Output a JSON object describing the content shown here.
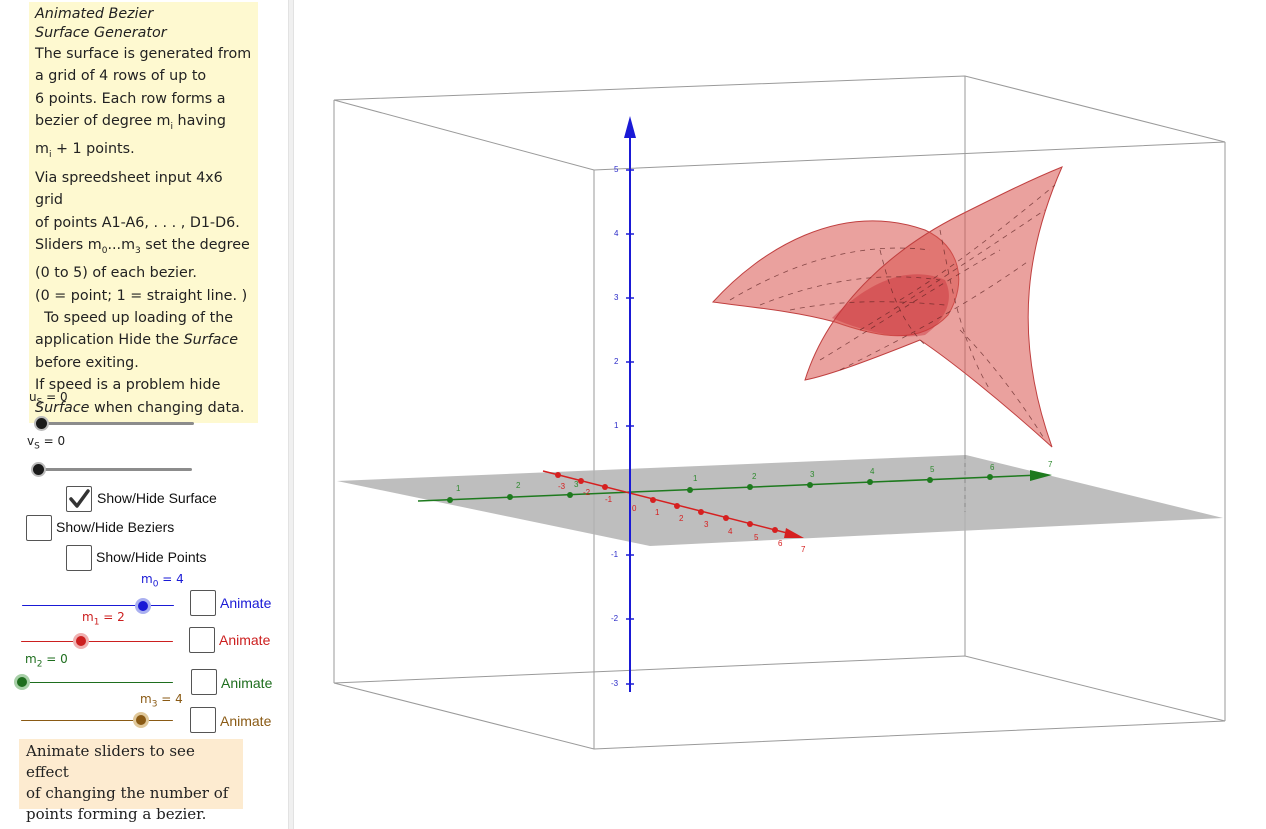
{
  "info": {
    "title_line1": "Animated Bezier",
    "title_line2": "Surface Generator",
    "lines": [
      "The surface is generated from",
      "a grid of 4 rows of up to",
      "6 points.   Each row forms a",
      "bezier of degree m",
      "m",
      "Via spreedsheet input 4x6 grid",
      "of points A1-A6, . . . , D1-D6.",
      "Sliders m",
      "(0 to 5) of each bezier.",
      "(0 = point; 1 = straight line. )",
      "  To speed up loading of the",
      "application Hide the ",
      "before exiting.",
      "If speed is a problem hide",
      " when changing data."
    ],
    "having": " having",
    "sub_i": "i",
    "plus_one": " + 1 points.",
    "sub_0": "0",
    "ellipsis": "...m",
    "sub_3": "3",
    "set_degree": " set the degree",
    "surface_word": "Surface"
  },
  "sliders": {
    "us": {
      "name": "u",
      "sub": "S",
      "value": 0
    },
    "vs": {
      "name": "v",
      "sub": "S",
      "value": 0
    },
    "m0": {
      "name": "m",
      "sub": "0",
      "value": 4,
      "color": "#1a1ad6"
    },
    "m1": {
      "name": "m",
      "sub": "1",
      "value": 2,
      "color": "#cc1f1f"
    },
    "m2": {
      "name": "m",
      "sub": "2",
      "value": 0,
      "color": "#1e6e1e"
    },
    "m3": {
      "name": "m",
      "sub": "3",
      "value": 4,
      "color": "#8a5a14"
    },
    "eq": " = "
  },
  "checkboxes": {
    "surface": {
      "label": "Show/Hide Surface",
      "checked": true
    },
    "beziers": {
      "label": "Show/Hide Beziers",
      "checked": false
    },
    "points": {
      "label": "Show/Hide Points",
      "checked": false
    }
  },
  "animate": [
    {
      "label": "Animate",
      "color": "#1a1ad6"
    },
    {
      "label": "Animate",
      "color": "#cc1f1f"
    },
    {
      "label": "Animate",
      "color": "#1e6e1e"
    },
    {
      "label": "Animate",
      "color": "#8a5a14"
    }
  ],
  "note": {
    "line1": "Animate sliders to see effect",
    "line2": "of changing the number of",
    "line3": "points forming a bezier."
  },
  "axes": {
    "z_ticks": [
      "5",
      "4",
      "3",
      "2",
      "1",
      "-1",
      "-2",
      "-3"
    ],
    "y_ticks": [
      "1",
      "2",
      "3",
      "4",
      "5",
      "6",
      "7"
    ],
    "x_ticks": [
      "-3",
      "-2",
      "-1",
      "0",
      "1",
      "2",
      "3",
      "4",
      "5",
      "6",
      "7"
    ],
    "y_neg_ticks": [
      "-1"
    ],
    "colors": {
      "x": "#d62020",
      "y": "#1e7a1e",
      "z": "#1a1ad6",
      "surface": "#d9534f",
      "plane": "#b3b3b3"
    }
  }
}
